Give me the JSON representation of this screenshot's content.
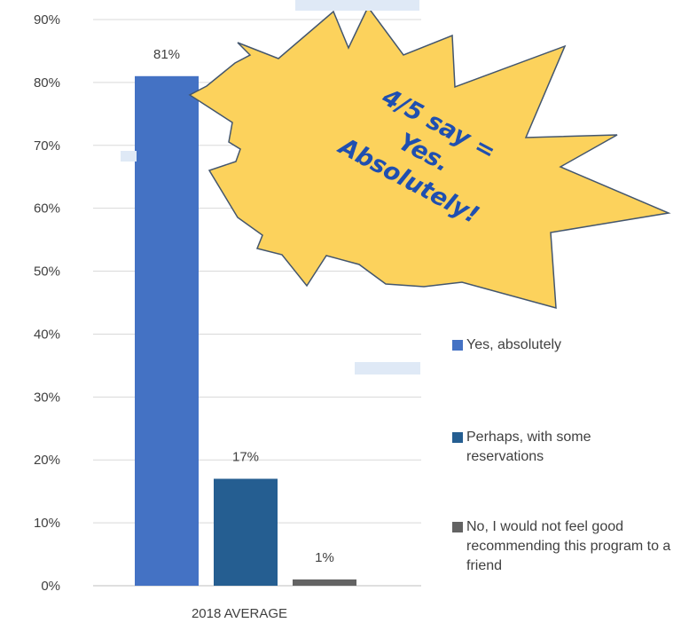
{
  "chart_data": {
    "type": "bar",
    "categories": [
      "2018 AVERAGE"
    ],
    "series": [
      {
        "name": "Yes, absolutely",
        "values": [
          81
        ],
        "color": "#4472c4"
      },
      {
        "name": "Perhaps, with some reservations",
        "values": [
          17
        ],
        "color": "#255e91"
      },
      {
        "name": "No, I would not feel good recommending this program to a friend",
        "values": [
          1
        ],
        "color": "#636363"
      }
    ],
    "data_labels": [
      "81%",
      "17%",
      "1%"
    ],
    "ylim": [
      0,
      90
    ],
    "yticks": [
      "0%",
      "10%",
      "20%",
      "30%",
      "40%",
      "50%",
      "60%",
      "70%",
      "80%",
      "90%"
    ],
    "grid": true,
    "legend_position": "right",
    "annotation": {
      "shape": "starburst",
      "lines": [
        "4/5 say =",
        "Yes.",
        "Absolutely!"
      ],
      "fill": "#fcd25c",
      "text_color": "#1f4fb0"
    }
  }
}
